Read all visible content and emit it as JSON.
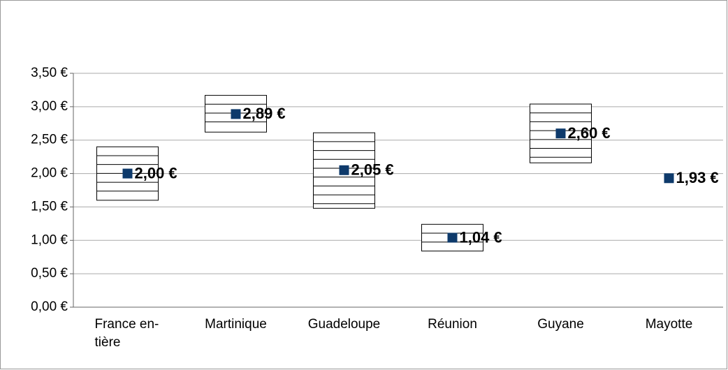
{
  "chart_data": {
    "type": "range-point",
    "categories": [
      "France en-tière",
      "Martinique",
      "Guadeloupe",
      "Réunion",
      "Guyane",
      "Mayotte"
    ],
    "values": [
      2.0,
      2.89,
      2.05,
      1.04,
      2.6,
      1.93
    ],
    "value_labels": [
      "2,00 €",
      "2,89 €",
      "2,05 €",
      "1,04 €",
      "2,60 €",
      "1,93 €"
    ],
    "low": [
      1.6,
      2.62,
      1.48,
      0.84,
      2.16,
      null
    ],
    "high": [
      2.4,
      3.17,
      2.61,
      1.24,
      3.04,
      null
    ],
    "color": "#0e3a6b",
    "ylim": [
      0,
      3.5
    ],
    "yticks": [
      {
        "value": 0,
        "label": "0,00 €"
      },
      {
        "value": 0.5,
        "label": "0,50 €"
      },
      {
        "value": 1,
        "label": "1,00 €"
      },
      {
        "value": 1.5,
        "label": "1,50 €"
      },
      {
        "value": 2,
        "label": "2,00 €"
      },
      {
        "value": 2.5,
        "label": "2,50 €"
      },
      {
        "value": 3,
        "label": "3,00 €"
      },
      {
        "value": 3.5,
        "label": "3,50 €"
      }
    ],
    "grid": true
  }
}
